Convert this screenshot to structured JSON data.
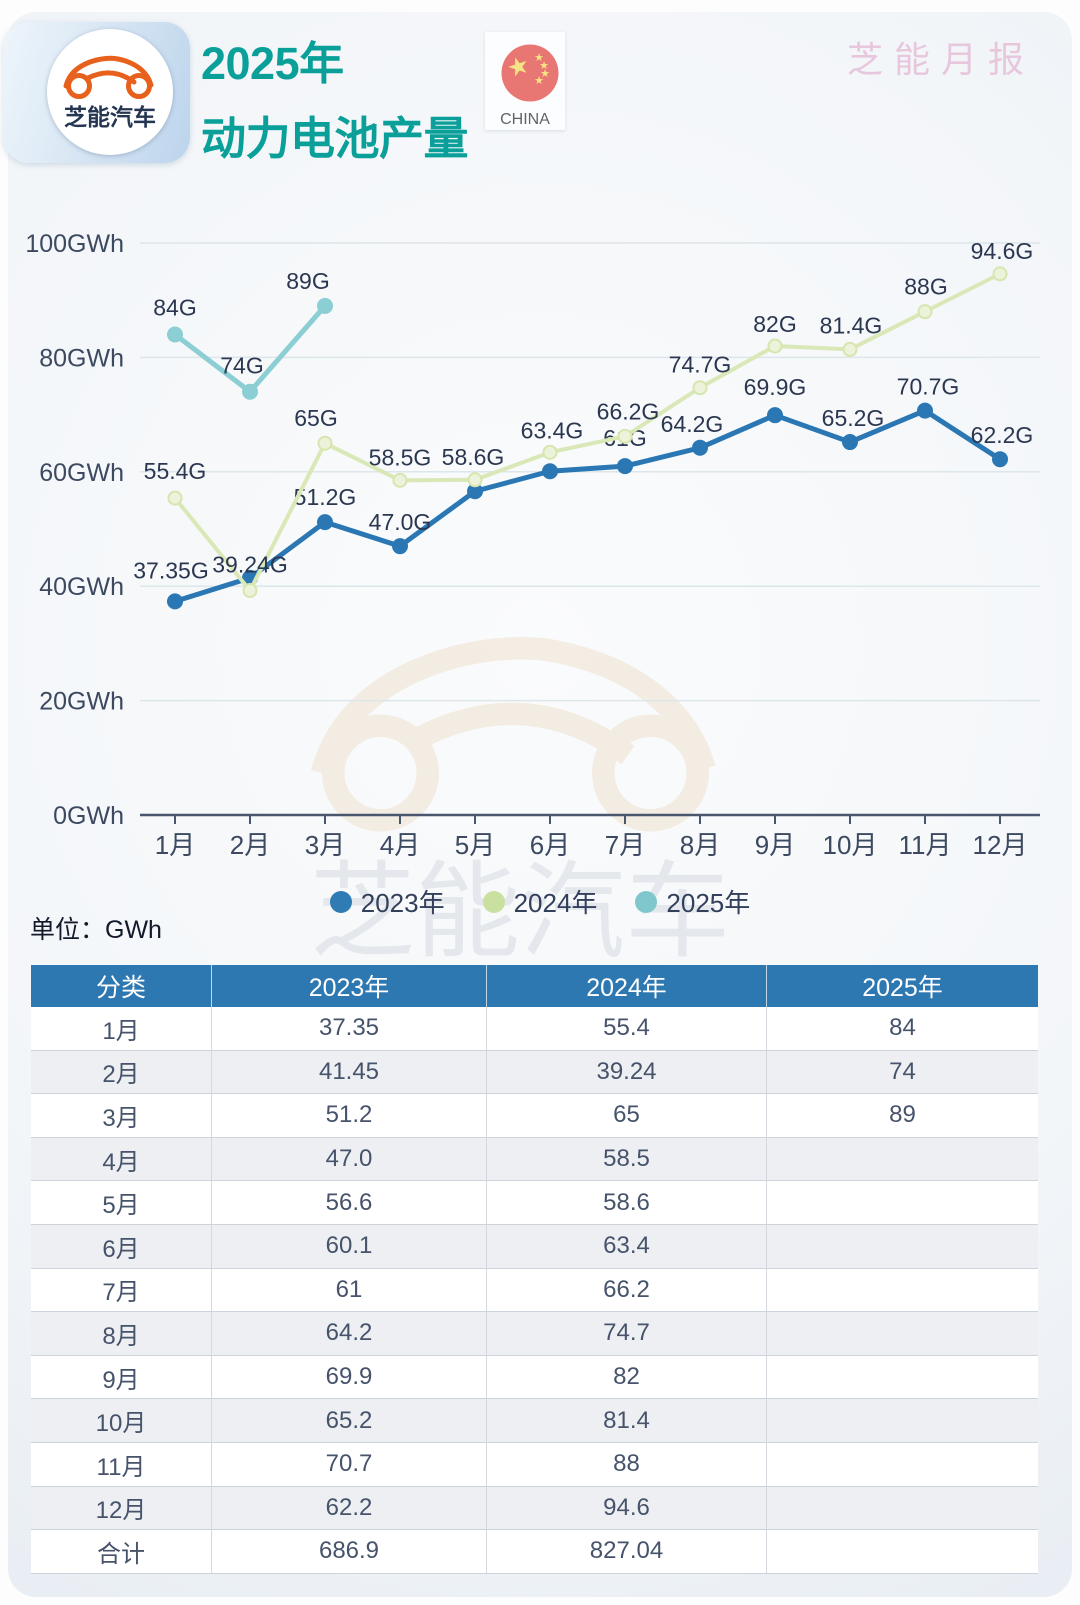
{
  "header": {
    "logo_text": "芝能汽车",
    "title_line1": "2025年",
    "title_line2": "动力电池产量",
    "flag_caption": "CHINA",
    "report_badge": "芝能月报",
    "colors": {
      "title_teal": "#0aa099",
      "badge_pink": "#e8c7de",
      "logo_orange": "#e8611c",
      "flag_red": "#e87672",
      "star_yellow": "#f5e385"
    }
  },
  "chart_data": {
    "type": "line",
    "unit_note": "单位：GWh",
    "categories": [
      "1月",
      "2月",
      "3月",
      "4月",
      "5月",
      "6月",
      "7月",
      "8月",
      "9月",
      "10月",
      "11月",
      "12月"
    ],
    "y_ticks": [
      0,
      20,
      40,
      60,
      80,
      100
    ],
    "y_tick_labels": [
      "0GWh",
      "20GWh",
      "40GWh",
      "60GWh",
      "80GWh",
      "100GWh"
    ],
    "ylim": [
      0,
      100
    ],
    "grid": true,
    "legend_position": "bottom",
    "series": [
      {
        "name": "2023年",
        "color": "#2a77b4",
        "marker_fill": "#2a77b4",
        "marker_stroke": "#2a77b4",
        "legend_color": "#2e7cb3",
        "values": [
          37.35,
          41.45,
          51.2,
          47.0,
          56.6,
          60.1,
          61,
          64.2,
          69.9,
          65.2,
          70.7,
          62.2
        ],
        "labels": [
          {
            "i": 0,
            "text": "37.35G",
            "dx": -4,
            "dy": -23
          },
          {
            "i": 2,
            "text": "51.2G",
            "dx": 0,
            "dy": -17
          },
          {
            "i": 3,
            "text": "47.0G",
            "dx": 0,
            "dy": -16
          },
          {
            "i": 6,
            "text": "61G",
            "dx": 0,
            "dy": -20
          },
          {
            "i": 7,
            "text": "64.2G",
            "dx": -8,
            "dy": -16
          },
          {
            "i": 8,
            "text": "69.9G",
            "dx": 0,
            "dy": -20
          },
          {
            "i": 9,
            "text": "65.2G",
            "dx": 3,
            "dy": -16
          },
          {
            "i": 10,
            "text": "70.7G",
            "dx": 3,
            "dy": -16
          },
          {
            "i": 11,
            "text": "62.2G",
            "dx": 2,
            "dy": -16
          }
        ]
      },
      {
        "name": "2024年",
        "color": "#d9e8b6",
        "marker_fill": "#ecf3da",
        "marker_stroke": "#d6e6ae",
        "legend_color": "#c9e0a1",
        "values": [
          55.4,
          39.24,
          65,
          58.5,
          58.6,
          63.4,
          66.2,
          74.7,
          82,
          81.4,
          88,
          94.6
        ],
        "labels": [
          {
            "i": 0,
            "text": "55.4G",
            "dx": 0,
            "dy": -19
          },
          {
            "i": 1,
            "text": "39.24G",
            "dx": 0,
            "dy": -18
          },
          {
            "i": 2,
            "text": "65G",
            "dx": -9,
            "dy": -17
          },
          {
            "i": 3,
            "text": "58.5G",
            "dx": 0,
            "dy": -15
          },
          {
            "i": 4,
            "text": "58.6G",
            "dx": -2,
            "dy": -15
          },
          {
            "i": 5,
            "text": "63.4G",
            "dx": 2,
            "dy": -14
          },
          {
            "i": 6,
            "text": "66.2G",
            "dx": 3,
            "dy": -17
          },
          {
            "i": 7,
            "text": "74.7G",
            "dx": 0,
            "dy": -15
          },
          {
            "i": 8,
            "text": "82G",
            "dx": 0,
            "dy": -14
          },
          {
            "i": 9,
            "text": "81.4G",
            "dx": 1,
            "dy": -16
          },
          {
            "i": 10,
            "text": "88G",
            "dx": 1,
            "dy": -17
          },
          {
            "i": 11,
            "text": "94.6G",
            "dx": 2,
            "dy": -15
          }
        ]
      },
      {
        "name": "2025年",
        "color": "#8bced3",
        "marker_fill": "#8bced3",
        "marker_stroke": "#8bced3",
        "legend_color": "#7fc7cc",
        "values": [
          84,
          74,
          89
        ],
        "labels": [
          {
            "i": 0,
            "text": "84G",
            "dx": 0,
            "dy": -19
          },
          {
            "i": 1,
            "text": "74G",
            "dx": -8,
            "dy": -18
          },
          {
            "i": 2,
            "text": "89G",
            "dx": -17,
            "dy": -17
          }
        ]
      }
    ]
  },
  "table": {
    "headers": [
      "分类",
      "2023年",
      "2024年",
      "2025年"
    ],
    "rows": [
      [
        "1月",
        "37.35",
        "55.4",
        "84"
      ],
      [
        "2月",
        "41.45",
        "39.24",
        "74"
      ],
      [
        "3月",
        "51.2",
        "65",
        "89"
      ],
      [
        "4月",
        "47.0",
        "58.5",
        ""
      ],
      [
        "5月",
        "56.6",
        "58.6",
        ""
      ],
      [
        "6月",
        "60.1",
        "63.4",
        ""
      ],
      [
        "7月",
        "61",
        "66.2",
        ""
      ],
      [
        "8月",
        "64.2",
        "74.7",
        ""
      ],
      [
        "9月",
        "69.9",
        "82",
        ""
      ],
      [
        "10月",
        "65.2",
        "81.4",
        ""
      ],
      [
        "11月",
        "70.7",
        "88",
        ""
      ],
      [
        "12月",
        "62.2",
        "94.6",
        ""
      ],
      [
        "合计",
        "686.9",
        "827.04",
        ""
      ]
    ]
  },
  "watermark": {
    "text": "芝能汽车"
  }
}
